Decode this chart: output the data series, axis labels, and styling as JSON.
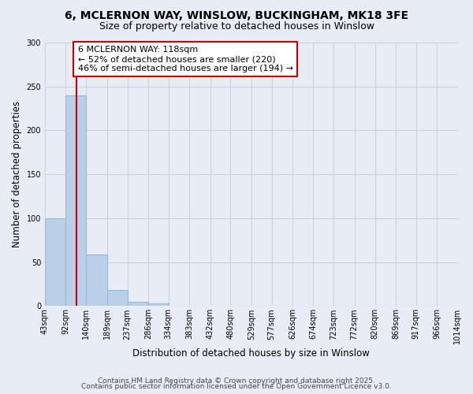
{
  "title1": "6, MCLERNON WAY, WINSLOW, BUCKINGHAM, MK18 3FE",
  "title2": "Size of property relative to detached houses in Winslow",
  "xlabel": "Distribution of detached houses by size in Winslow",
  "ylabel": "Number of detached properties",
  "bar_values": [
    100,
    240,
    59,
    18,
    5,
    3,
    0,
    0,
    0,
    0,
    0,
    0,
    0,
    0,
    0,
    0,
    0,
    0,
    0,
    0
  ],
  "bin_edges": [
    43,
    92,
    140,
    189,
    237,
    286,
    334,
    383,
    432,
    480,
    529,
    577,
    626,
    674,
    723,
    772,
    820,
    869,
    917,
    966,
    1014
  ],
  "tick_labels": [
    "43sqm",
    "92sqm",
    "140sqm",
    "189sqm",
    "237sqm",
    "286sqm",
    "334sqm",
    "383sqm",
    "432sqm",
    "480sqm",
    "529sqm",
    "577sqm",
    "626sqm",
    "674sqm",
    "723sqm",
    "772sqm",
    "820sqm",
    "869sqm",
    "917sqm",
    "966sqm",
    "1014sqm"
  ],
  "bar_color": "#b8d0e8",
  "bar_edge_color": "#9ab8d8",
  "grid_color": "#c8d0dc",
  "background_color": "#e8edf5",
  "vline_x": 118,
  "vline_color": "#cc0000",
  "annotation_text": "6 MCLERNON WAY: 118sqm\n← 52% of detached houses are smaller (220)\n46% of semi-detached houses are larger (194) →",
  "annotation_box_facecolor": "#ffffff",
  "annotation_box_edgecolor": "#cc0000",
  "ylim": [
    0,
    300
  ],
  "yticks": [
    0,
    50,
    100,
    150,
    200,
    250,
    300
  ],
  "footer1": "Contains HM Land Registry data © Crown copyright and database right 2025.",
  "footer2": "Contains public sector information licensed under the Open Government Licence v3.0.",
  "title1_fontsize": 10,
  "title2_fontsize": 9,
  "axis_label_fontsize": 8.5,
  "tick_fontsize": 7,
  "annotation_fontsize": 8,
  "footer_fontsize": 6.5
}
